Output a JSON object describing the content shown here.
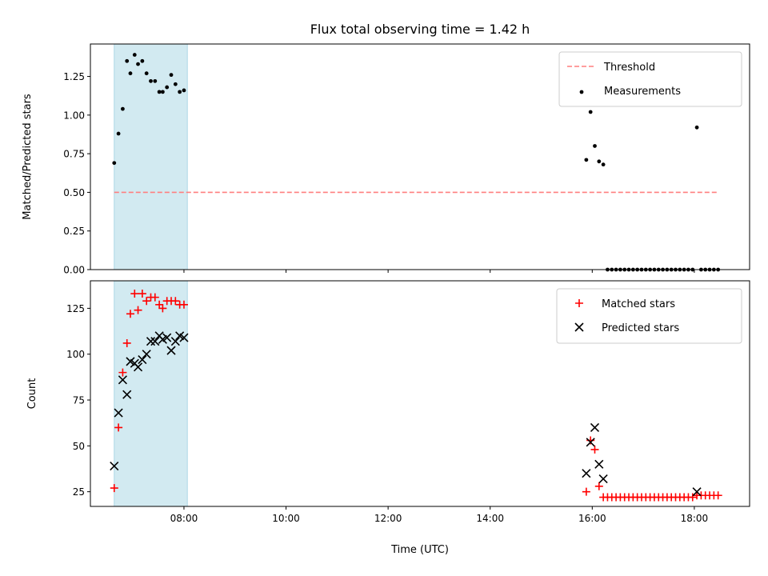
{
  "chart_data": [
    {
      "type": "scatter",
      "title": "Flux total observing time = 1.42 h",
      "xlabel": "",
      "ylabel": "Matched/Predicted stars",
      "xlim": [
        "06:10",
        "19:05"
      ],
      "ylim": [
        0,
        1.46
      ],
      "x_ticks": [
        "08:00",
        "10:00",
        "12:00",
        "14:00",
        "16:00",
        "18:00"
      ],
      "y_ticks": [
        "0.00",
        "0.25",
        "0.50",
        "0.75",
        "1.00",
        "1.25"
      ],
      "highlight_span": {
        "from": "06:38",
        "to": "08:04",
        "color": "#add8e6"
      },
      "legend": {
        "placement": "upper right",
        "entries": [
          "Threshold",
          "Measurements"
        ]
      },
      "threshold": {
        "name": "Threshold",
        "value": 0.5,
        "from": "06:38",
        "to": "18:29",
        "style": "dashed",
        "color": "#ff7f7f"
      },
      "series": [
        {
          "name": "Measurements",
          "color": "#000000",
          "marker": "dot",
          "points": [
            [
              "06:38",
              0.69
            ],
            [
              "06:43",
              0.88
            ],
            [
              "06:48",
              1.04
            ],
            [
              "06:53",
              1.35
            ],
            [
              "06:57",
              1.27
            ],
            [
              "07:02",
              1.39
            ],
            [
              "07:06",
              1.33
            ],
            [
              "07:11",
              1.35
            ],
            [
              "07:16",
              1.27
            ],
            [
              "07:21",
              1.22
            ],
            [
              "07:26",
              1.22
            ],
            [
              "07:31",
              1.15
            ],
            [
              "07:35",
              1.15
            ],
            [
              "07:40",
              1.18
            ],
            [
              "07:45",
              1.26
            ],
            [
              "07:50",
              1.2
            ],
            [
              "07:55",
              1.15
            ],
            [
              "08:00",
              1.16
            ],
            [
              "15:53",
              0.71
            ],
            [
              "15:58",
              1.02
            ],
            [
              "16:03",
              0.8
            ],
            [
              "16:08",
              0.7
            ],
            [
              "16:13",
              0.68
            ],
            [
              "16:18",
              0.0
            ],
            [
              "16:23",
              0.0
            ],
            [
              "16:28",
              0.0
            ],
            [
              "16:33",
              0.0
            ],
            [
              "16:38",
              0.0
            ],
            [
              "16:43",
              0.0
            ],
            [
              "16:48",
              0.0
            ],
            [
              "16:53",
              0.0
            ],
            [
              "16:58",
              0.0
            ],
            [
              "17:03",
              0.0
            ],
            [
              "17:08",
              0.0
            ],
            [
              "17:13",
              0.0
            ],
            [
              "17:18",
              0.0
            ],
            [
              "17:23",
              0.0
            ],
            [
              "17:28",
              0.0
            ],
            [
              "17:33",
              0.0
            ],
            [
              "17:38",
              0.0
            ],
            [
              "17:43",
              0.0
            ],
            [
              "17:48",
              0.0
            ],
            [
              "17:53",
              0.0
            ],
            [
              "17:58",
              0.0
            ],
            [
              "18:03",
              0.92
            ],
            [
              "18:08",
              0.0
            ],
            [
              "18:13",
              0.0
            ],
            [
              "18:18",
              0.0
            ],
            [
              "18:23",
              0.0
            ],
            [
              "18:28",
              0.0
            ]
          ]
        }
      ]
    },
    {
      "type": "scatter",
      "title": "",
      "xlabel": "Time (UTC)",
      "ylabel": "Count",
      "xlim": [
        "06:10",
        "19:05"
      ],
      "ylim": [
        17,
        140
      ],
      "x_ticks": [
        "08:00",
        "10:00",
        "12:00",
        "14:00",
        "16:00",
        "18:00"
      ],
      "y_ticks": [
        "25",
        "50",
        "75",
        "100",
        "125"
      ],
      "highlight_span": {
        "from": "06:38",
        "to": "08:04",
        "color": "#add8e6"
      },
      "legend": {
        "placement": "upper right",
        "entries": [
          "Matched stars",
          "Predicted stars"
        ]
      },
      "series": [
        {
          "name": "Matched stars",
          "color": "#ff0000",
          "marker": "plus",
          "points": [
            [
              "06:38",
              27
            ],
            [
              "06:43",
              60
            ],
            [
              "06:48",
              90
            ],
            [
              "06:53",
              106
            ],
            [
              "06:57",
              122
            ],
            [
              "07:02",
              133
            ],
            [
              "07:06",
              124
            ],
            [
              "07:11",
              133
            ],
            [
              "07:16",
              129
            ],
            [
              "07:21",
              131
            ],
            [
              "07:26",
              131
            ],
            [
              "07:31",
              127
            ],
            [
              "07:35",
              125
            ],
            [
              "07:40",
              129
            ],
            [
              "07:45",
              129
            ],
            [
              "07:50",
              129
            ],
            [
              "07:55",
              127
            ],
            [
              "08:00",
              127
            ],
            [
              "15:53",
              25
            ],
            [
              "15:58",
              53
            ],
            [
              "16:03",
              48
            ],
            [
              "16:08",
              28
            ],
            [
              "16:13",
              22
            ],
            [
              "16:18",
              22
            ],
            [
              "16:23",
              22
            ],
            [
              "16:28",
              22
            ],
            [
              "16:33",
              22
            ],
            [
              "16:38",
              22
            ],
            [
              "16:43",
              22
            ],
            [
              "16:48",
              22
            ],
            [
              "16:53",
              22
            ],
            [
              "16:58",
              22
            ],
            [
              "17:03",
              22
            ],
            [
              "17:08",
              22
            ],
            [
              "17:13",
              22
            ],
            [
              "17:18",
              22
            ],
            [
              "17:23",
              22
            ],
            [
              "17:28",
              22
            ],
            [
              "17:33",
              22
            ],
            [
              "17:38",
              22
            ],
            [
              "17:43",
              22
            ],
            [
              "17:48",
              22
            ],
            [
              "17:53",
              22
            ],
            [
              "17:58",
              22
            ],
            [
              "18:03",
              23
            ],
            [
              "18:08",
              23
            ],
            [
              "18:13",
              23
            ],
            [
              "18:18",
              23
            ],
            [
              "18:23",
              23
            ],
            [
              "18:28",
              23
            ]
          ]
        },
        {
          "name": "Predicted stars",
          "color": "#000000",
          "marker": "x",
          "points": [
            [
              "06:38",
              39
            ],
            [
              "06:43",
              68
            ],
            [
              "06:48",
              86
            ],
            [
              "06:53",
              78
            ],
            [
              "06:57",
              96
            ],
            [
              "07:02",
              95
            ],
            [
              "07:06",
              93
            ],
            [
              "07:11",
              97
            ],
            [
              "07:16",
              100
            ],
            [
              "07:21",
              107
            ],
            [
              "07:26",
              107
            ],
            [
              "07:31",
              110
            ],
            [
              "07:35",
              108
            ],
            [
              "07:40",
              109
            ],
            [
              "07:45",
              102
            ],
            [
              "07:50",
              107
            ],
            [
              "07:55",
              110
            ],
            [
              "08:00",
              109
            ],
            [
              "15:53",
              35
            ],
            [
              "15:58",
              52
            ],
            [
              "16:03",
              60
            ],
            [
              "16:08",
              40
            ],
            [
              "16:13",
              32
            ],
            [
              "18:03",
              25
            ]
          ]
        }
      ]
    }
  ]
}
